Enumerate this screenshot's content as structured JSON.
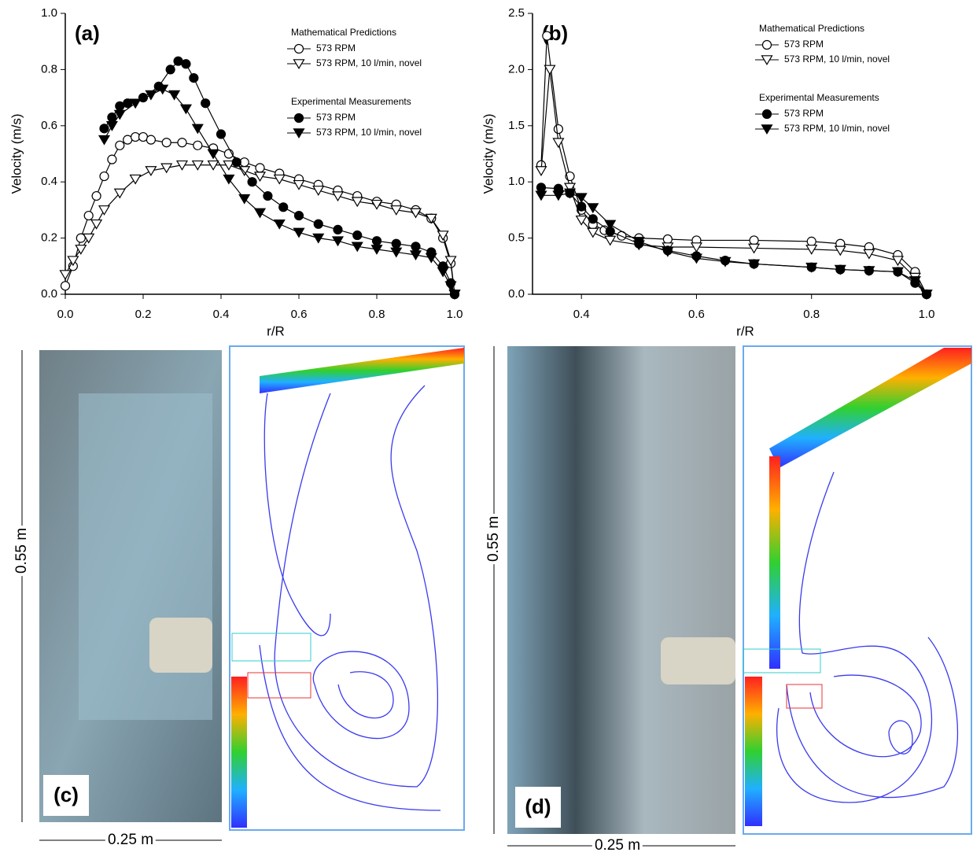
{
  "chart_data": [
    {
      "type": "line",
      "label": "(a)",
      "x_label": "r/R",
      "y_label": "Velocity (m/s)",
      "xlim": [
        0,
        1
      ],
      "ylim": [
        0,
        1
      ],
      "xticks": [
        {
          "value": 0,
          "label": "0.0"
        },
        0.2,
        0.4,
        0.6,
        0.8,
        {
          "value": 1,
          "label": "1.0"
        }
      ],
      "yticks": [
        {
          "value": 0,
          "label": "0.0"
        },
        0.2,
        0.4,
        0.6,
        0.8,
        {
          "value": 1,
          "label": "1.0"
        }
      ],
      "legend_titles": [
        "Mathematical Predictions",
        "Experimental Measurements"
      ],
      "series": [
        {
          "name": "573 RPM",
          "color": "#000000",
          "marker": "circle-open",
          "x": [
            0,
            0.02,
            0.04,
            0.06,
            0.08,
            0.1,
            0.12,
            0.14,
            0.16,
            0.18,
            0.2,
            0.22,
            0.26,
            0.3,
            0.34,
            0.38,
            0.42,
            0.46,
            0.5,
            0.55,
            0.6,
            0.65,
            0.7,
            0.75,
            0.8,
            0.85,
            0.9,
            0.94,
            0.97,
            0.99,
            1
          ],
          "values": [
            0.03,
            0.1,
            0.2,
            0.28,
            0.35,
            0.42,
            0.48,
            0.53,
            0.55,
            0.56,
            0.56,
            0.55,
            0.54,
            0.54,
            0.53,
            0.52,
            0.5,
            0.47,
            0.45,
            0.43,
            0.41,
            0.39,
            0.37,
            0.35,
            0.33,
            0.32,
            0.3,
            0.27,
            0.2,
            0.11,
            0
          ]
        },
        {
          "name": "573 RPM, 10 l/min, novel",
          "color": "#000000",
          "marker": "triangle-open",
          "x": [
            0,
            0.02,
            0.04,
            0.06,
            0.08,
            0.1,
            0.14,
            0.18,
            0.22,
            0.26,
            0.3,
            0.34,
            0.38,
            0.42,
            0.46,
            0.5,
            0.55,
            0.6,
            0.65,
            0.7,
            0.75,
            0.8,
            0.85,
            0.9,
            0.94,
            0.97,
            0.99,
            1
          ],
          "values": [
            0.07,
            0.12,
            0.16,
            0.2,
            0.25,
            0.3,
            0.36,
            0.41,
            0.44,
            0.45,
            0.46,
            0.46,
            0.46,
            0.46,
            0.44,
            0.42,
            0.41,
            0.39,
            0.37,
            0.35,
            0.33,
            0.32,
            0.3,
            0.29,
            0.27,
            0.21,
            0.12,
            0
          ]
        },
        {
          "name": "573 RPM",
          "color": "#000000",
          "marker": "circle-filled",
          "x": [
            0.1,
            0.12,
            0.14,
            0.16,
            0.2,
            0.24,
            0.27,
            0.29,
            0.31,
            0.33,
            0.36,
            0.4,
            0.44,
            0.48,
            0.52,
            0.56,
            0.6,
            0.65,
            0.7,
            0.75,
            0.8,
            0.85,
            0.9,
            0.94,
            0.97,
            0.99,
            1
          ],
          "values": [
            0.59,
            0.63,
            0.67,
            0.68,
            0.7,
            0.74,
            0.8,
            0.83,
            0.82,
            0.77,
            0.68,
            0.57,
            0.47,
            0.4,
            0.35,
            0.31,
            0.28,
            0.25,
            0.23,
            0.21,
            0.19,
            0.18,
            0.17,
            0.15,
            0.1,
            0.04,
            0
          ]
        },
        {
          "name": "573 RPM, 10 l/min, novel",
          "color": "#000000",
          "marker": "triangle-filled",
          "x": [
            0.1,
            0.12,
            0.14,
            0.18,
            0.22,
            0.25,
            0.28,
            0.31,
            0.34,
            0.38,
            0.42,
            0.46,
            0.5,
            0.55,
            0.6,
            0.65,
            0.7,
            0.75,
            0.8,
            0.85,
            0.9,
            0.94,
            0.97,
            0.99,
            1
          ],
          "values": [
            0.55,
            0.6,
            0.64,
            0.68,
            0.71,
            0.73,
            0.71,
            0.66,
            0.59,
            0.5,
            0.41,
            0.34,
            0.29,
            0.25,
            0.22,
            0.2,
            0.19,
            0.17,
            0.16,
            0.15,
            0.14,
            0.13,
            0.08,
            0.03,
            0
          ]
        }
      ]
    },
    {
      "type": "line",
      "label": "(b)",
      "x_label": "r/R",
      "y_label": "Velocity (m/s)",
      "xlim": [
        0.315,
        1
      ],
      "ylim": [
        0,
        2.5
      ],
      "xticks": [
        0.4,
        0.6,
        0.8,
        {
          "value": 1,
          "label": "1.0"
        }
      ],
      "yticks": [
        {
          "value": 0,
          "label": "0.0"
        },
        0.5,
        {
          "value": 1,
          "label": "1.0"
        },
        1.5,
        {
          "value": 2,
          "label": "2.0"
        },
        2.5
      ],
      "legend_titles": [
        "Mathematical Predictions",
        "Experimental Measurements"
      ],
      "series": [
        {
          "name": "573 RPM",
          "color": "#000000",
          "marker": "circle-open",
          "x": [
            0.33,
            0.34,
            0.36,
            0.38,
            0.4,
            0.42,
            0.44,
            0.47,
            0.5,
            0.55,
            0.6,
            0.7,
            0.8,
            0.85,
            0.9,
            0.95,
            0.98,
            1
          ],
          "values": [
            1.15,
            2.3,
            1.47,
            1.05,
            0.75,
            0.62,
            0.57,
            0.52,
            0.5,
            0.49,
            0.48,
            0.48,
            0.47,
            0.45,
            0.42,
            0.35,
            0.2,
            0
          ]
        },
        {
          "name": "573 RPM, 10 l/min, novel",
          "color": "#000000",
          "marker": "triangle-open",
          "x": [
            0.33,
            0.345,
            0.36,
            0.38,
            0.4,
            0.42,
            0.45,
            0.5,
            0.55,
            0.6,
            0.7,
            0.8,
            0.85,
            0.9,
            0.95,
            0.98,
            1
          ],
          "values": [
            1.1,
            2.0,
            1.35,
            0.95,
            0.66,
            0.55,
            0.48,
            0.44,
            0.42,
            0.42,
            0.41,
            0.4,
            0.39,
            0.36,
            0.3,
            0.15,
            0
          ]
        },
        {
          "name": "573 RPM",
          "color": "#000000",
          "marker": "circle-filled",
          "x": [
            0.33,
            0.36,
            0.38,
            0.4,
            0.42,
            0.45,
            0.5,
            0.55,
            0.6,
            0.65,
            0.7,
            0.8,
            0.85,
            0.9,
            0.95,
            0.98,
            1
          ],
          "values": [
            0.95,
            0.94,
            0.9,
            0.78,
            0.67,
            0.56,
            0.45,
            0.39,
            0.34,
            0.3,
            0.27,
            0.24,
            0.22,
            0.21,
            0.2,
            0.1,
            0
          ]
        },
        {
          "name": "573 RPM, 10 l/min, novel",
          "color": "#000000",
          "marker": "triangle-filled",
          "x": [
            0.33,
            0.36,
            0.38,
            0.4,
            0.42,
            0.45,
            0.5,
            0.55,
            0.6,
            0.65,
            0.7,
            0.8,
            0.85,
            0.9,
            0.95,
            0.98,
            1
          ],
          "values": [
            0.88,
            0.88,
            0.9,
            0.86,
            0.77,
            0.62,
            0.47,
            0.38,
            0.32,
            0.29,
            0.27,
            0.24,
            0.22,
            0.21,
            0.2,
            0.12,
            0
          ]
        }
      ]
    }
  ],
  "images": [
    {
      "label": "(c)",
      "height_label": "0.55 m",
      "width_label": "0.25 m"
    },
    {
      "label": "(d)",
      "height_label": "0.55 m",
      "width_label": "0.25 m"
    }
  ]
}
